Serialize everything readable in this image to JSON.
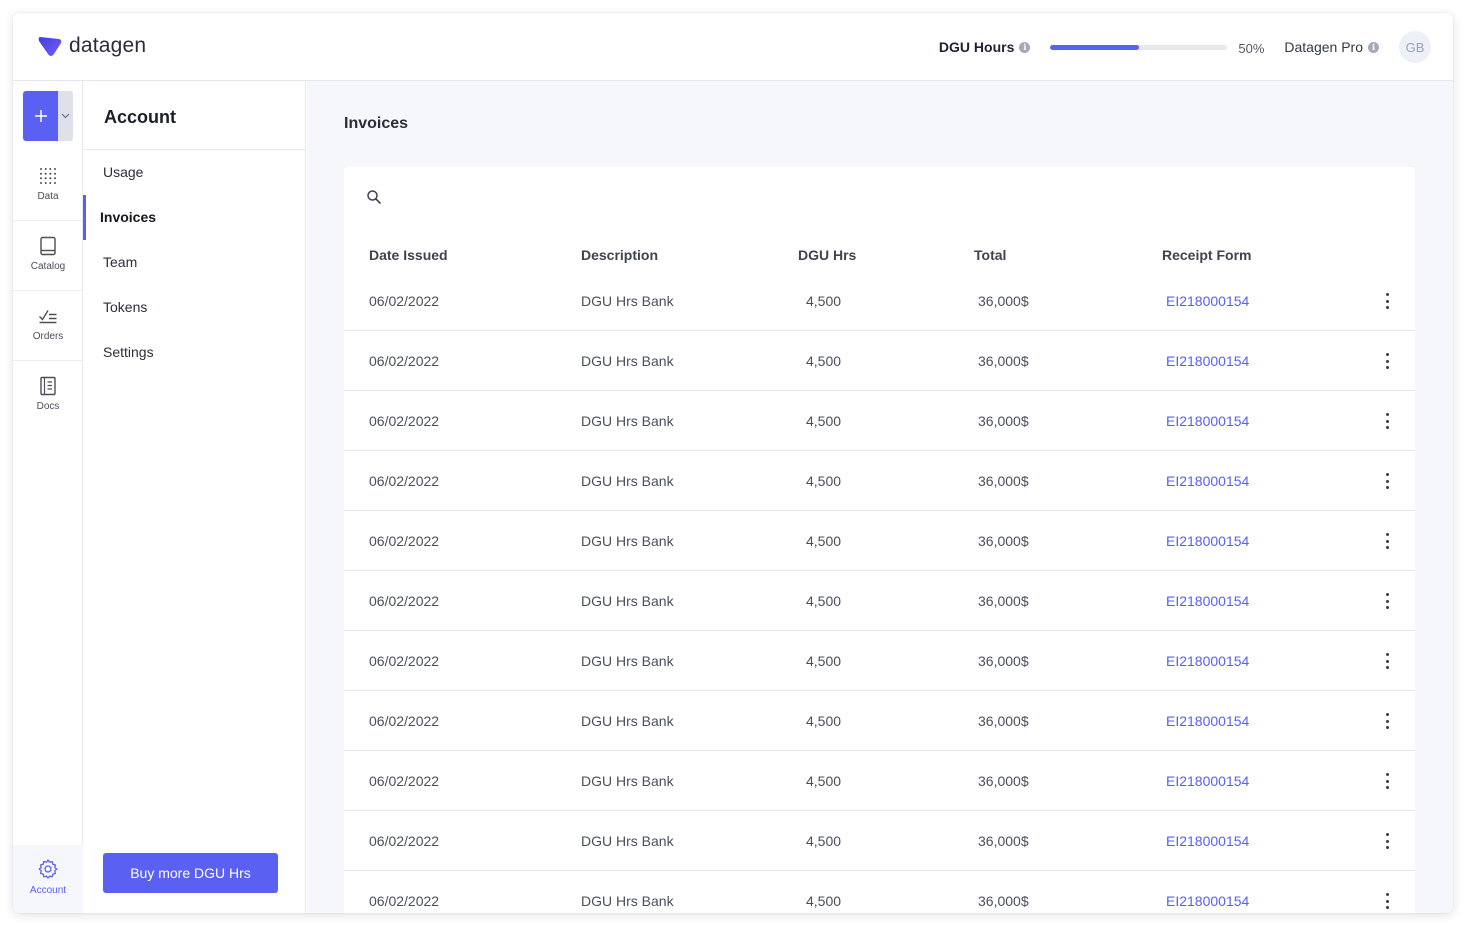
{
  "brand": {
    "name": "datagen",
    "accent": "#5960f2"
  },
  "header": {
    "hours_label": "DGU Hours",
    "hours_progress": 0.5,
    "hours_percent": "50%",
    "plan_label": "Datagen Pro",
    "avatar_initials": "GB"
  },
  "rail": {
    "items": [
      {
        "label": "Data",
        "icon": "grid-dots-icon"
      },
      {
        "label": "Catalog",
        "icon": "book-icon"
      },
      {
        "label": "Orders",
        "icon": "checklist-icon"
      },
      {
        "label": "Docs",
        "icon": "document-icon"
      }
    ],
    "account_label": "Account"
  },
  "subnav": {
    "title": "Account",
    "items": [
      {
        "label": "Usage"
      },
      {
        "label": "Invoices"
      },
      {
        "label": "Team"
      },
      {
        "label": "Tokens"
      },
      {
        "label": "Settings"
      }
    ],
    "active": "Invoices",
    "buy_label": "Buy more DGU Hrs"
  },
  "main": {
    "title": "Invoices",
    "table": {
      "columns": [
        "Date Issued",
        "Description",
        "DGU Hrs",
        "Total",
        "Receipt Form"
      ],
      "rows": [
        {
          "date": "06/02/2022",
          "description": "DGU Hrs Bank",
          "hrs": "4,500",
          "total": "36,000$",
          "receipt": "EI218000154"
        },
        {
          "date": "06/02/2022",
          "description": "DGU Hrs Bank",
          "hrs": "4,500",
          "total": "36,000$",
          "receipt": "EI218000154"
        },
        {
          "date": "06/02/2022",
          "description": "DGU Hrs Bank",
          "hrs": "4,500",
          "total": "36,000$",
          "receipt": "EI218000154"
        },
        {
          "date": "06/02/2022",
          "description": "DGU Hrs Bank",
          "hrs": "4,500",
          "total": "36,000$",
          "receipt": "EI218000154"
        },
        {
          "date": "06/02/2022",
          "description": "DGU Hrs Bank",
          "hrs": "4,500",
          "total": "36,000$",
          "receipt": "EI218000154"
        },
        {
          "date": "06/02/2022",
          "description": "DGU Hrs Bank",
          "hrs": "4,500",
          "total": "36,000$",
          "receipt": "EI218000154"
        },
        {
          "date": "06/02/2022",
          "description": "DGU Hrs Bank",
          "hrs": "4,500",
          "total": "36,000$",
          "receipt": "EI218000154"
        },
        {
          "date": "06/02/2022",
          "description": "DGU Hrs Bank",
          "hrs": "4,500",
          "total": "36,000$",
          "receipt": "EI218000154"
        },
        {
          "date": "06/02/2022",
          "description": "DGU Hrs Bank",
          "hrs": "4,500",
          "total": "36,000$",
          "receipt": "EI218000154"
        },
        {
          "date": "06/02/2022",
          "description": "DGU Hrs Bank",
          "hrs": "4,500",
          "total": "36,000$",
          "receipt": "EI218000154"
        },
        {
          "date": "06/02/2022",
          "description": "DGU Hrs Bank",
          "hrs": "4,500",
          "total": "36,000$",
          "receipt": "EI218000154"
        }
      ]
    }
  }
}
